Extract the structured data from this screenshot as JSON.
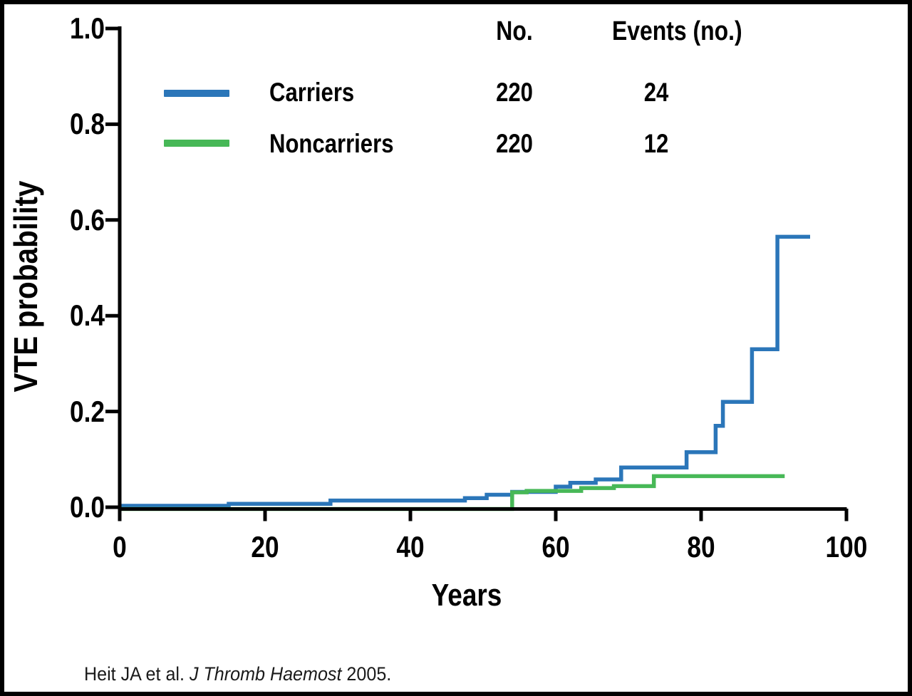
{
  "figure": {
    "ylabel": "VTE probability",
    "xlabel": "Years",
    "citation": {
      "prefix": "Heit JA et al. ",
      "journal": "J Thromb Haemost",
      "suffix": " 2005."
    }
  },
  "legend": {
    "col_no_header": "No.",
    "col_events_header": "Events (no.)",
    "rows": [
      {
        "label": "Carriers",
        "n": "220",
        "events": "24",
        "color": "#2b76b9"
      },
      {
        "label": "Noncarriers",
        "n": "220",
        "events": "12",
        "color": "#47b857"
      }
    ]
  },
  "chart_data": {
    "type": "line",
    "subtype": "kaplan-meier-step",
    "title": "",
    "xlabel": "Years",
    "ylabel": "VTE probability",
    "xlim": [
      0,
      100
    ],
    "ylim": [
      0.0,
      1.0
    ],
    "xticks": [
      0,
      20,
      40,
      60,
      80,
      100
    ],
    "yticks": [
      "0.0",
      "0.2",
      "0.4",
      "0.6",
      "0.8",
      "1.0"
    ],
    "grid": false,
    "legend_position": "top-center",
    "series": [
      {
        "name": "Carriers",
        "color": "#2b76b9",
        "n": 220,
        "events": 24,
        "steps": [
          [
            0,
            0.003
          ],
          [
            15,
            0.007
          ],
          [
            29,
            0.014
          ],
          [
            47.5,
            0.019
          ],
          [
            50.5,
            0.026
          ],
          [
            54,
            0.032
          ],
          [
            60,
            0.043
          ],
          [
            62,
            0.051
          ],
          [
            65.5,
            0.058
          ],
          [
            69,
            0.083
          ],
          [
            78,
            0.115
          ],
          [
            82,
            0.17
          ],
          [
            83,
            0.22
          ],
          [
            87,
            0.33
          ],
          [
            90.5,
            0.565
          ]
        ],
        "end_year": 95
      },
      {
        "name": "Noncarriers",
        "color": "#47b857",
        "n": 220,
        "events": 12,
        "steps": [
          [
            0,
            0.0
          ],
          [
            54,
            0.031
          ],
          [
            56,
            0.034
          ],
          [
            63.5,
            0.04
          ],
          [
            68,
            0.044
          ],
          [
            73.5,
            0.065
          ]
        ],
        "end_year": 91.5
      }
    ]
  }
}
